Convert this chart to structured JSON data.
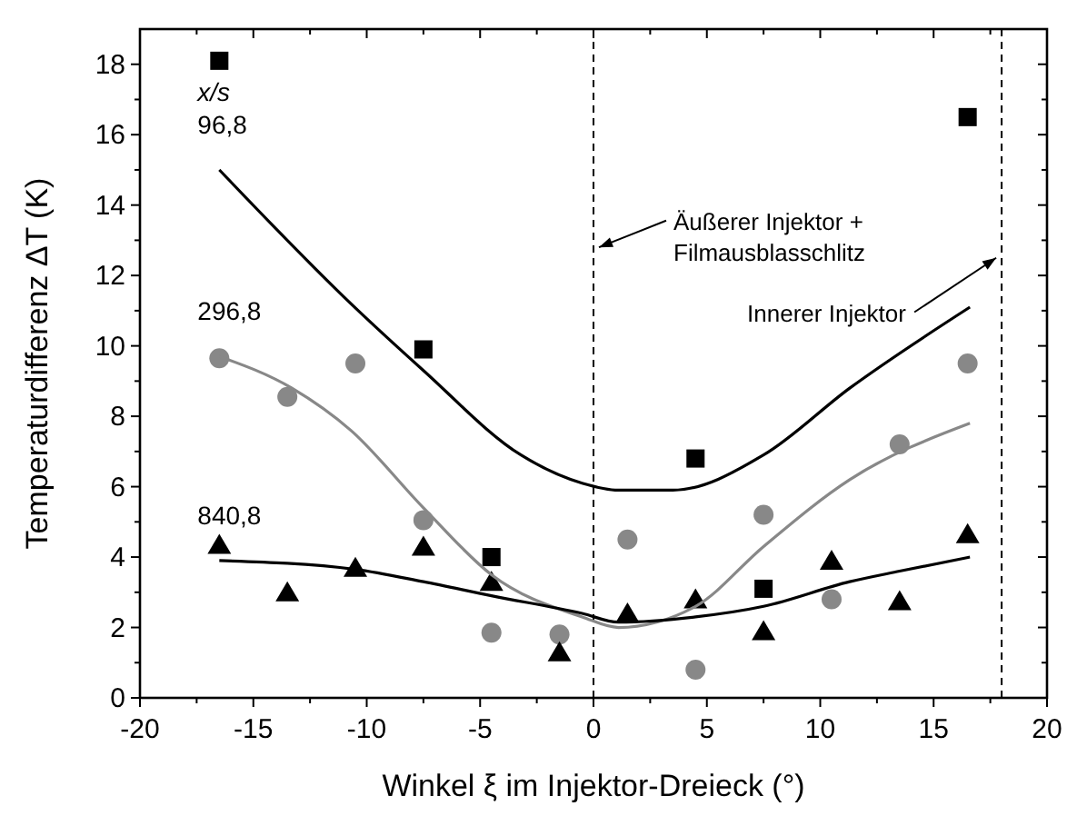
{
  "chart_data": {
    "type": "scatter",
    "xlabel": "Winkel ξ im Injektor-Dreieck (°)",
    "ylabel": "Temperaturdifferenz ΔT (K)",
    "xlim": [
      -20,
      20
    ],
    "xticks": [
      -20,
      -15,
      -10,
      -5,
      0,
      5,
      10,
      15,
      20
    ],
    "ylim": [
      0,
      19
    ],
    "yticks": [
      0,
      2,
      4,
      6,
      8,
      10,
      12,
      14,
      16,
      18
    ],
    "grid": false,
    "series": [
      {
        "marker": "square",
        "color": "#000000",
        "x": [
          -16.5,
          -7.5,
          -4.5,
          4.5,
          7.5,
          16.5
        ],
        "values": [
          18.1,
          9.9,
          4.0,
          6.8,
          3.1,
          16.5
        ]
      },
      {
        "marker": "circle",
        "color": "#888888",
        "x": [
          -16.5,
          -13.5,
          -10.5,
          -7.5,
          -4.5,
          -1.5,
          1.5,
          4.5,
          7.5,
          10.5,
          13.5,
          16.5
        ],
        "values": [
          9.65,
          8.55,
          9.5,
          5.05,
          1.85,
          1.8,
          4.5,
          0.8,
          5.2,
          2.8,
          7.2,
          9.5
        ]
      },
      {
        "marker": "triangle",
        "color": "#000000",
        "x": [
          -16.5,
          -13.5,
          -10.5,
          -7.5,
          -4.5,
          -1.5,
          1.5,
          4.5,
          7.5,
          10.5,
          13.5,
          16.5
        ],
        "values": [
          4.35,
          3.0,
          3.7,
          4.3,
          3.3,
          1.3,
          2.4,
          2.8,
          1.9,
          3.9,
          2.75,
          4.65
        ]
      },
      {
        "type": "line",
        "name": "96,8",
        "color": "#000000",
        "x": [
          -16.5,
          -10.7,
          -7.5,
          -3.2,
          -0.5,
          1.1,
          3.5,
          7.5,
          11.3,
          16.6
        ],
        "values": [
          15.0,
          11.2,
          9.3,
          6.9,
          6.1,
          5.9,
          5.9,
          6.9,
          8.8,
          11.1
        ]
      },
      {
        "type": "line",
        "name": "296,8",
        "color": "#888888",
        "x": [
          -16.5,
          -13.3,
          -10.7,
          -7.5,
          -4.5,
          -0.5,
          1.1,
          4.5,
          7.5,
          11.3,
          16.6
        ],
        "values": [
          9.7,
          8.8,
          7.6,
          5.4,
          3.5,
          2.3,
          2.0,
          2.6,
          4.3,
          6.2,
          7.8
        ]
      },
      {
        "type": "line",
        "name": "840,8",
        "color": "#000000",
        "x": [
          -16.5,
          -10.5,
          -7.5,
          -4.5,
          -0.5,
          1.1,
          4.5,
          7.5,
          11.3,
          13.5,
          16.6
        ],
        "values": [
          3.9,
          3.65,
          3.3,
          2.9,
          2.4,
          2.15,
          2.3,
          2.6,
          3.3,
          3.6,
          4.0
        ]
      }
    ],
    "ref_lines": [
      {
        "axis": "x",
        "value": 0,
        "label": "Äußerer Injektor +\nFilmausblasschlitz",
        "line_style": "dashed"
      },
      {
        "axis": "x",
        "value": 18,
        "label": "Innerer Injektor",
        "line_style": "dashed"
      }
    ],
    "annotations": [
      "x/s"
    ]
  }
}
